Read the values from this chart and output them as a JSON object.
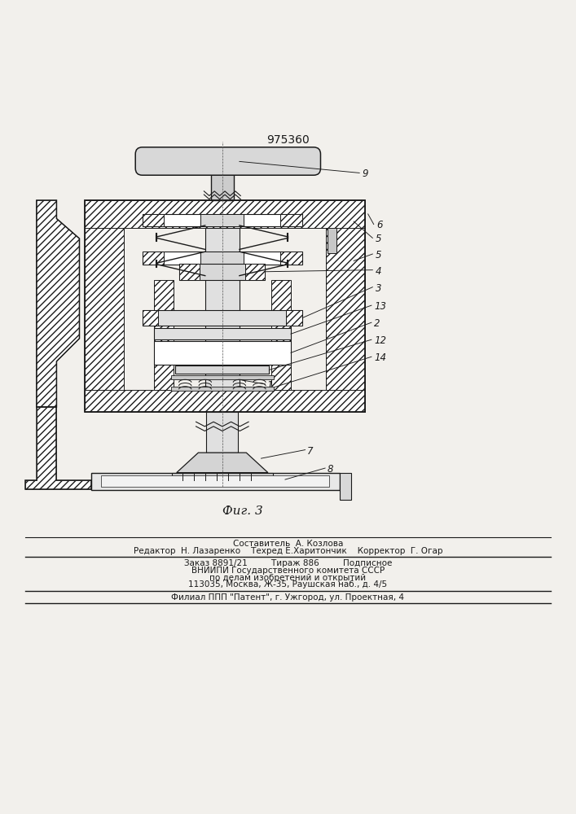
{
  "patent_number": "975360",
  "fig_label": "Фиг. 3",
  "bg_color": "#f2f0ec",
  "line_color": "#1a1a1a",
  "footer_lines": [
    "Составитель  А. Козлова",
    "Редактор  Н. Лазаренко    Техред Е.Харитончик    Корректор  Г. Огар",
    "Заказ 8891/21         Тираж 886         Подписное",
    "ВНИИПИ Государственного комитета СССР",
    "по делам изобретений и открытий",
    "113035, Москва, Ж-35, Раушская наб., д. 4/5",
    "Филиал ППП \"Патент\", г. Ужгород, ул. Проектная, 4"
  ]
}
